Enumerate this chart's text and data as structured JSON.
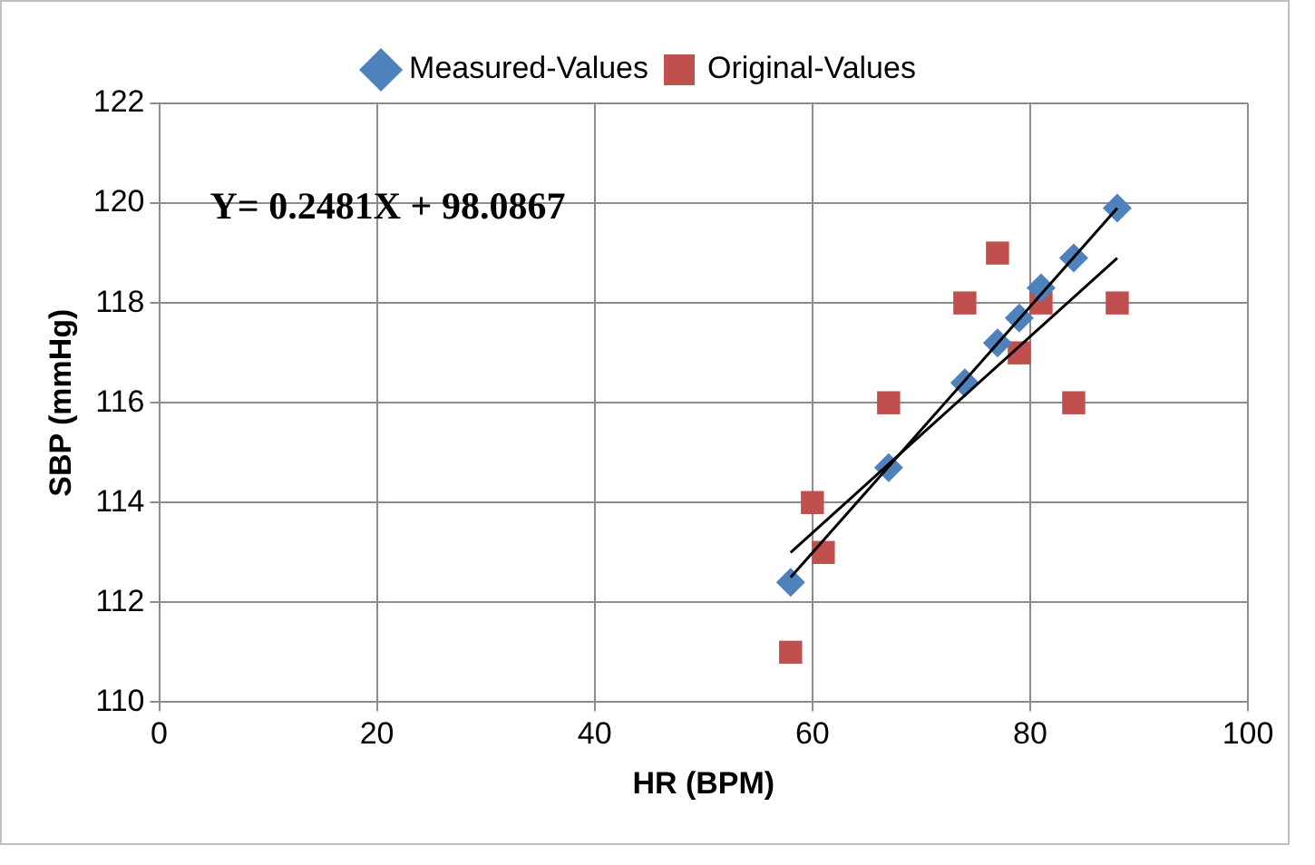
{
  "chart_data": {
    "type": "scatter",
    "xlabel": "HR (BPM)",
    "ylabel": "SBP (mmHg)",
    "xlim": [
      0,
      100
    ],
    "xticks": [
      0,
      20,
      40,
      60,
      80,
      100
    ],
    "ylim": [
      110,
      122
    ],
    "yticks": [
      110,
      112,
      114,
      116,
      118,
      120,
      122
    ],
    "grid": true,
    "legend": "top",
    "annotations": [
      "Y= 0.2481X + 98.0867"
    ],
    "series": [
      {
        "name": "Measured-Values",
        "color": "#4f81bd",
        "marker": "diamond",
        "x": [
          58,
          67,
          74,
          77,
          79,
          81,
          84,
          88
        ],
        "values": [
          112.4,
          114.7,
          116.4,
          117.2,
          117.7,
          118.3,
          118.9,
          119.9
        ]
      },
      {
        "name": "Original-Values",
        "color": "#c0504d",
        "marker": "square",
        "x": [
          58,
          60,
          61,
          67,
          74,
          77,
          79,
          81,
          84,
          88
        ],
        "values": [
          111,
          114,
          113,
          116,
          118,
          119,
          117,
          118,
          116,
          118
        ]
      },
      {
        "type": "line",
        "color": "#000000",
        "marker": "none",
        "x": [
          58,
          88
        ],
        "values": [
          112.5,
          119.9
        ]
      },
      {
        "type": "line",
        "color": "#000000",
        "marker": "none",
        "x": [
          58,
          88
        ],
        "values": [
          113.0,
          118.9
        ]
      }
    ]
  }
}
